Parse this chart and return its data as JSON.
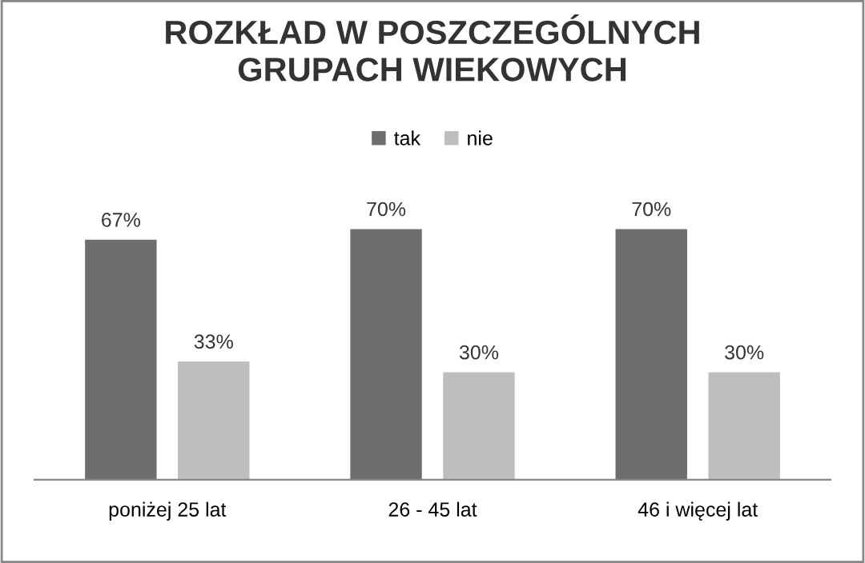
{
  "chart_data": {
    "type": "bar",
    "title": "ROZKŁAD W POSZCZEGÓLNYCH\nGRUPACH WIEKOWYCH",
    "categories": [
      "poniżej 25 lat",
      "26 - 45 lat",
      "46 i więcej lat"
    ],
    "series": [
      {
        "name": "tak",
        "color": "#6e6e6e",
        "values": [
          67,
          70,
          70
        ],
        "value_labels": [
          "67%",
          "70%",
          "70%"
        ]
      },
      {
        "name": "nie",
        "color": "#bebebe",
        "values": [
          33,
          30,
          30
        ],
        "value_labels": [
          "33%",
          "30%",
          "30%"
        ]
      }
    ],
    "tick_labels": "x",
    "legend": "top"
  }
}
